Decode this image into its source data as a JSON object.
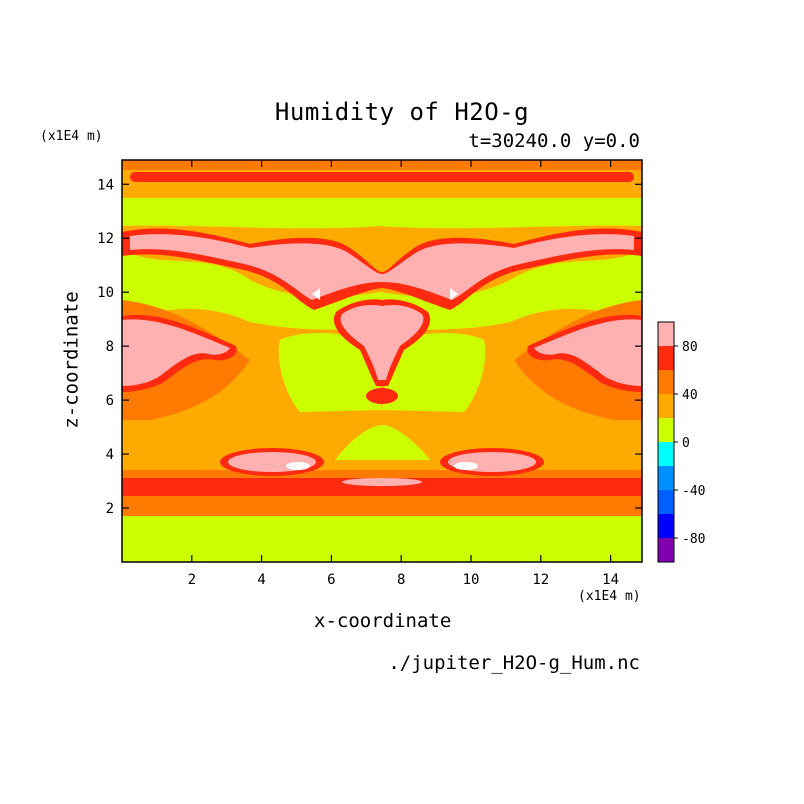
{
  "chart_data": {
    "type": "heatmap",
    "title": "Humidity of H2O-g",
    "subtitle": "t=30240.0 y=0.0",
    "xlabel": "x-coordinate",
    "ylabel": "z-coordinate",
    "x_unit": "(x1E4 m)",
    "z_unit": "(x1E4 m)",
    "xlim": [
      0,
      14.9
    ],
    "ylim": [
      0,
      14.9
    ],
    "x_ticks": [
      2,
      4,
      6,
      8,
      10,
      12,
      14
    ],
    "y_ticks": [
      2,
      4,
      6,
      8,
      10,
      12,
      14
    ],
    "colorbar": {
      "levels": [
        -100,
        -80,
        -60,
        -40,
        -20,
        0,
        20,
        40,
        60,
        80,
        100
      ],
      "tick_labels": [
        80,
        40,
        0,
        -40,
        -80
      ],
      "colors": [
        "#8000b0",
        "#0000ff",
        "#0060ff",
        "#0090ff",
        "#00ffff",
        "#ccff00",
        "#ffaa00",
        "#ff7a00",
        "#ff2a10",
        "#ffb0b0"
      ]
    },
    "source_file": "./jupiter_H2O-g_Hum.nc"
  }
}
